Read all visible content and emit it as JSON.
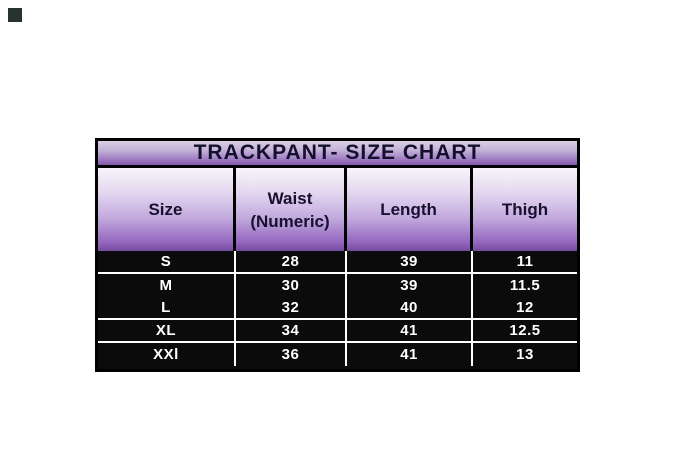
{
  "title_bar": {
    "text": "TRACKPANT- SIZE CHART"
  },
  "table": {
    "header": {
      "size": "Size",
      "waist_line1": "Waist",
      "waist_line2": "(Numeric)",
      "length": "Length",
      "thigh": "Thigh"
    },
    "rows": [
      [
        "S",
        "28",
        "39",
        "11"
      ],
      [
        "M",
        "30",
        "39",
        "11.5"
      ],
      [
        "L",
        "32",
        "40",
        "12"
      ],
      [
        "XL",
        "34",
        "41",
        "12.5"
      ],
      [
        "XXl",
        "36",
        "41",
        "13"
      ]
    ]
  },
  "chart_data": {
    "type": "table",
    "title": "TRACKPANT- SIZE CHART",
    "columns": [
      "Size",
      "Waist (Numeric)",
      "Length",
      "Thigh"
    ],
    "rows": [
      [
        "S",
        "28",
        "39",
        "11"
      ],
      [
        "M",
        "30",
        "39",
        "11.5"
      ],
      [
        "L",
        "32",
        "40",
        "12"
      ],
      [
        "XL",
        "34",
        "41",
        "12.5"
      ],
      [
        "XXl",
        "36",
        "41",
        "13"
      ]
    ]
  },
  "colors": {
    "title_gradient_top": "#d9d0e4",
    "title_gradient_bottom": "#7f57a9",
    "header_gradient_top": "#f8f5fb",
    "header_gradient_bottom": "#744b9e",
    "body_background": "#0b0b0b",
    "body_text": "#ffffff",
    "border": "#000000",
    "title_text": "#150f2e",
    "header_text": "#17112f",
    "corner_mark": "#26332e"
  }
}
